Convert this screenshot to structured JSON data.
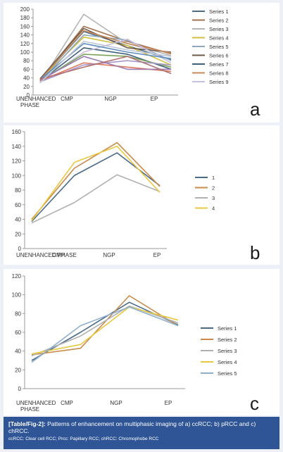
{
  "chart_data": [
    {
      "type": "line",
      "panel_letter": "a",
      "categories": [
        "UNENHANCED PHASE",
        "CMP",
        "NGP",
        "EP"
      ],
      "ylim": [
        0,
        200
      ],
      "yticks": [
        0,
        20,
        40,
        60,
        80,
        100,
        120,
        140,
        160,
        180,
        200
      ],
      "grid": false,
      "legend": "right",
      "series": [
        {
          "name": "Series 1",
          "color": "#4a6a8a",
          "values": [
            35,
            148,
            115,
            82
          ]
        },
        {
          "name": "Series 2",
          "color": "#a5724e",
          "values": [
            34,
            160,
            125,
            96
          ]
        },
        {
          "name": "Series 3",
          "color": "#b5b5b5",
          "values": [
            28,
            188,
            120,
            92
          ]
        },
        {
          "name": "Series 4",
          "color": "#d1bf3c",
          "values": [
            36,
            135,
            115,
            70
          ]
        },
        {
          "name": "Series 5",
          "color": "#8fa8bd",
          "values": [
            30,
            140,
            128,
            80
          ]
        },
        {
          "name": "Series 6",
          "color": "#6e5a4a",
          "values": [
            38,
            155,
            110,
            100
          ]
        },
        {
          "name": "Series 7",
          "color": "#3f607a",
          "values": [
            32,
            110,
            95,
            60
          ]
        },
        {
          "name": "Series 8",
          "color": "#c98a5a",
          "values": [
            35,
            150,
            120,
            98
          ]
        },
        {
          "name": "Series 9",
          "color": "#c8bfe0",
          "values": [
            30,
            100,
            130,
            75
          ]
        },
        {
          "name": "",
          "color": "#7aa35a",
          "values": [
            34,
            95,
            90,
            65
          ]
        },
        {
          "name": "",
          "color": "#e07a5f",
          "values": [
            33,
            75,
            65,
            55
          ]
        },
        {
          "name": "",
          "color": "#5f8fc0",
          "values": [
            36,
            120,
            100,
            85
          ]
        },
        {
          "name": "",
          "color": "#a898c8",
          "values": [
            31,
            70,
            80,
            70
          ]
        },
        {
          "name": "",
          "color": "#9a7ab0",
          "values": [
            35,
            90,
            60,
            60
          ]
        },
        {
          "name": "",
          "color": "#b07070",
          "values": [
            37,
            65,
            90,
            50
          ]
        },
        {
          "name": "",
          "color": "#c0c8d8",
          "values": [
            29,
            125,
            105,
            90
          ]
        }
      ]
    },
    {
      "type": "line",
      "panel_letter": "b",
      "categories": [
        "UNENHANCED PHASE",
        "CMP",
        "NGP",
        "EP"
      ],
      "ylim": [
        0,
        160
      ],
      "yticks": [
        0,
        20,
        40,
        60,
        80,
        100,
        120,
        140,
        160
      ],
      "grid": false,
      "legend": "right",
      "series": [
        {
          "name": "1",
          "color": "#4a6a8a",
          "values": [
            37,
            100,
            131,
            86
          ]
        },
        {
          "name": "2",
          "color": "#c98a4a",
          "values": [
            40,
            110,
            145,
            85
          ]
        },
        {
          "name": "3",
          "color": "#b0b0b0",
          "values": [
            35,
            63,
            101,
            78
          ]
        },
        {
          "name": "4",
          "color": "#e8c840",
          "values": [
            38,
            118,
            140,
            77
          ]
        }
      ]
    },
    {
      "type": "line",
      "panel_letter": "c",
      "categories": [
        "UNENHANCED PHASE",
        "CMP",
        "NGP",
        "EP"
      ],
      "ylim": [
        0,
        120
      ],
      "yticks": [
        0,
        20,
        40,
        60,
        80,
        100,
        120
      ],
      "grid": false,
      "legend": "right",
      "series": [
        {
          "name": "Series 1",
          "color": "#4a6a8a",
          "values": [
            30,
            60,
            92,
            68
          ]
        },
        {
          "name": "Series 2",
          "color": "#c98a4a",
          "values": [
            36,
            43,
            99,
            67
          ]
        },
        {
          "name": "Series 3",
          "color": "#b0b0b0",
          "values": [
            35,
            56,
            88,
            70
          ]
        },
        {
          "name": "Series 4",
          "color": "#e8c840",
          "values": [
            37,
            47,
            87,
            73
          ]
        },
        {
          "name": "Series 5",
          "color": "#8fb0cc",
          "values": [
            28,
            67,
            87,
            67
          ]
        }
      ]
    }
  ],
  "caption": {
    "label": "[Table/Fig-2]:",
    "text": "Patterns of enhancement on multiphasic imaging of a) ccRCC; b) pRCC and c) chRCC.",
    "note": "ccRCC: Clear cell RCC; Prcc: Papillary RCC; chRCC: Chromophobe RCC"
  }
}
